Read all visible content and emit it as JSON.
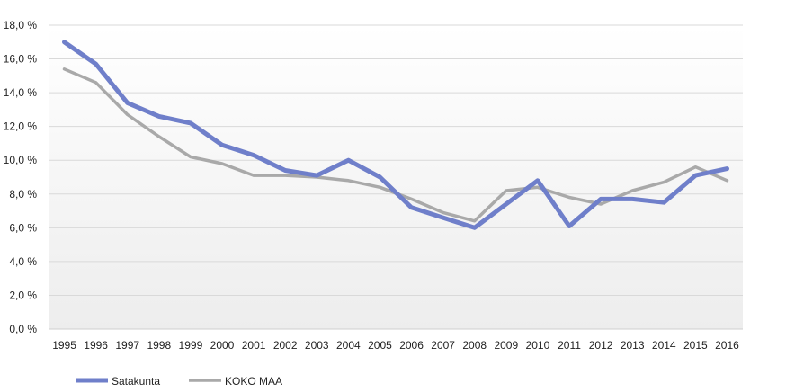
{
  "chart_data": {
    "type": "line",
    "title": "",
    "xlabel": "",
    "ylabel": "",
    "categories": [
      "1995",
      "1996",
      "1997",
      "1998",
      "1999",
      "2000",
      "2001",
      "2002",
      "2003",
      "2004",
      "2005",
      "2006",
      "2007",
      "2008",
      "2009",
      "2010",
      "2011",
      "2012",
      "2013",
      "2014",
      "2015",
      "2016"
    ],
    "y_ticks": [
      "0,0 %",
      "2,0 %",
      "4,0 %",
      "6,0 %",
      "8,0 %",
      "10,0 %",
      "12,0 %",
      "14,0 %",
      "16,0 %",
      "18,0 %"
    ],
    "ylim": [
      0,
      18
    ],
    "grid": true,
    "legend_position": "bottom-left",
    "series": [
      {
        "name": "Satakunta",
        "color": "#6f7fca",
        "values": [
          17.0,
          15.7,
          13.4,
          12.6,
          12.2,
          10.9,
          10.3,
          9.4,
          9.1,
          10.0,
          9.0,
          7.2,
          6.6,
          6.0,
          7.4,
          8.8,
          6.1,
          7.7,
          7.7,
          7.5,
          9.1,
          9.5
        ]
      },
      {
        "name": "KOKO MAA",
        "color": "#a9a9a9",
        "values": [
          15.4,
          14.6,
          12.7,
          11.4,
          10.2,
          9.8,
          9.1,
          9.1,
          9.0,
          8.8,
          8.4,
          7.7,
          6.9,
          6.4,
          8.2,
          8.4,
          7.8,
          7.4,
          8.2,
          8.7,
          9.6,
          8.8
        ]
      }
    ]
  }
}
